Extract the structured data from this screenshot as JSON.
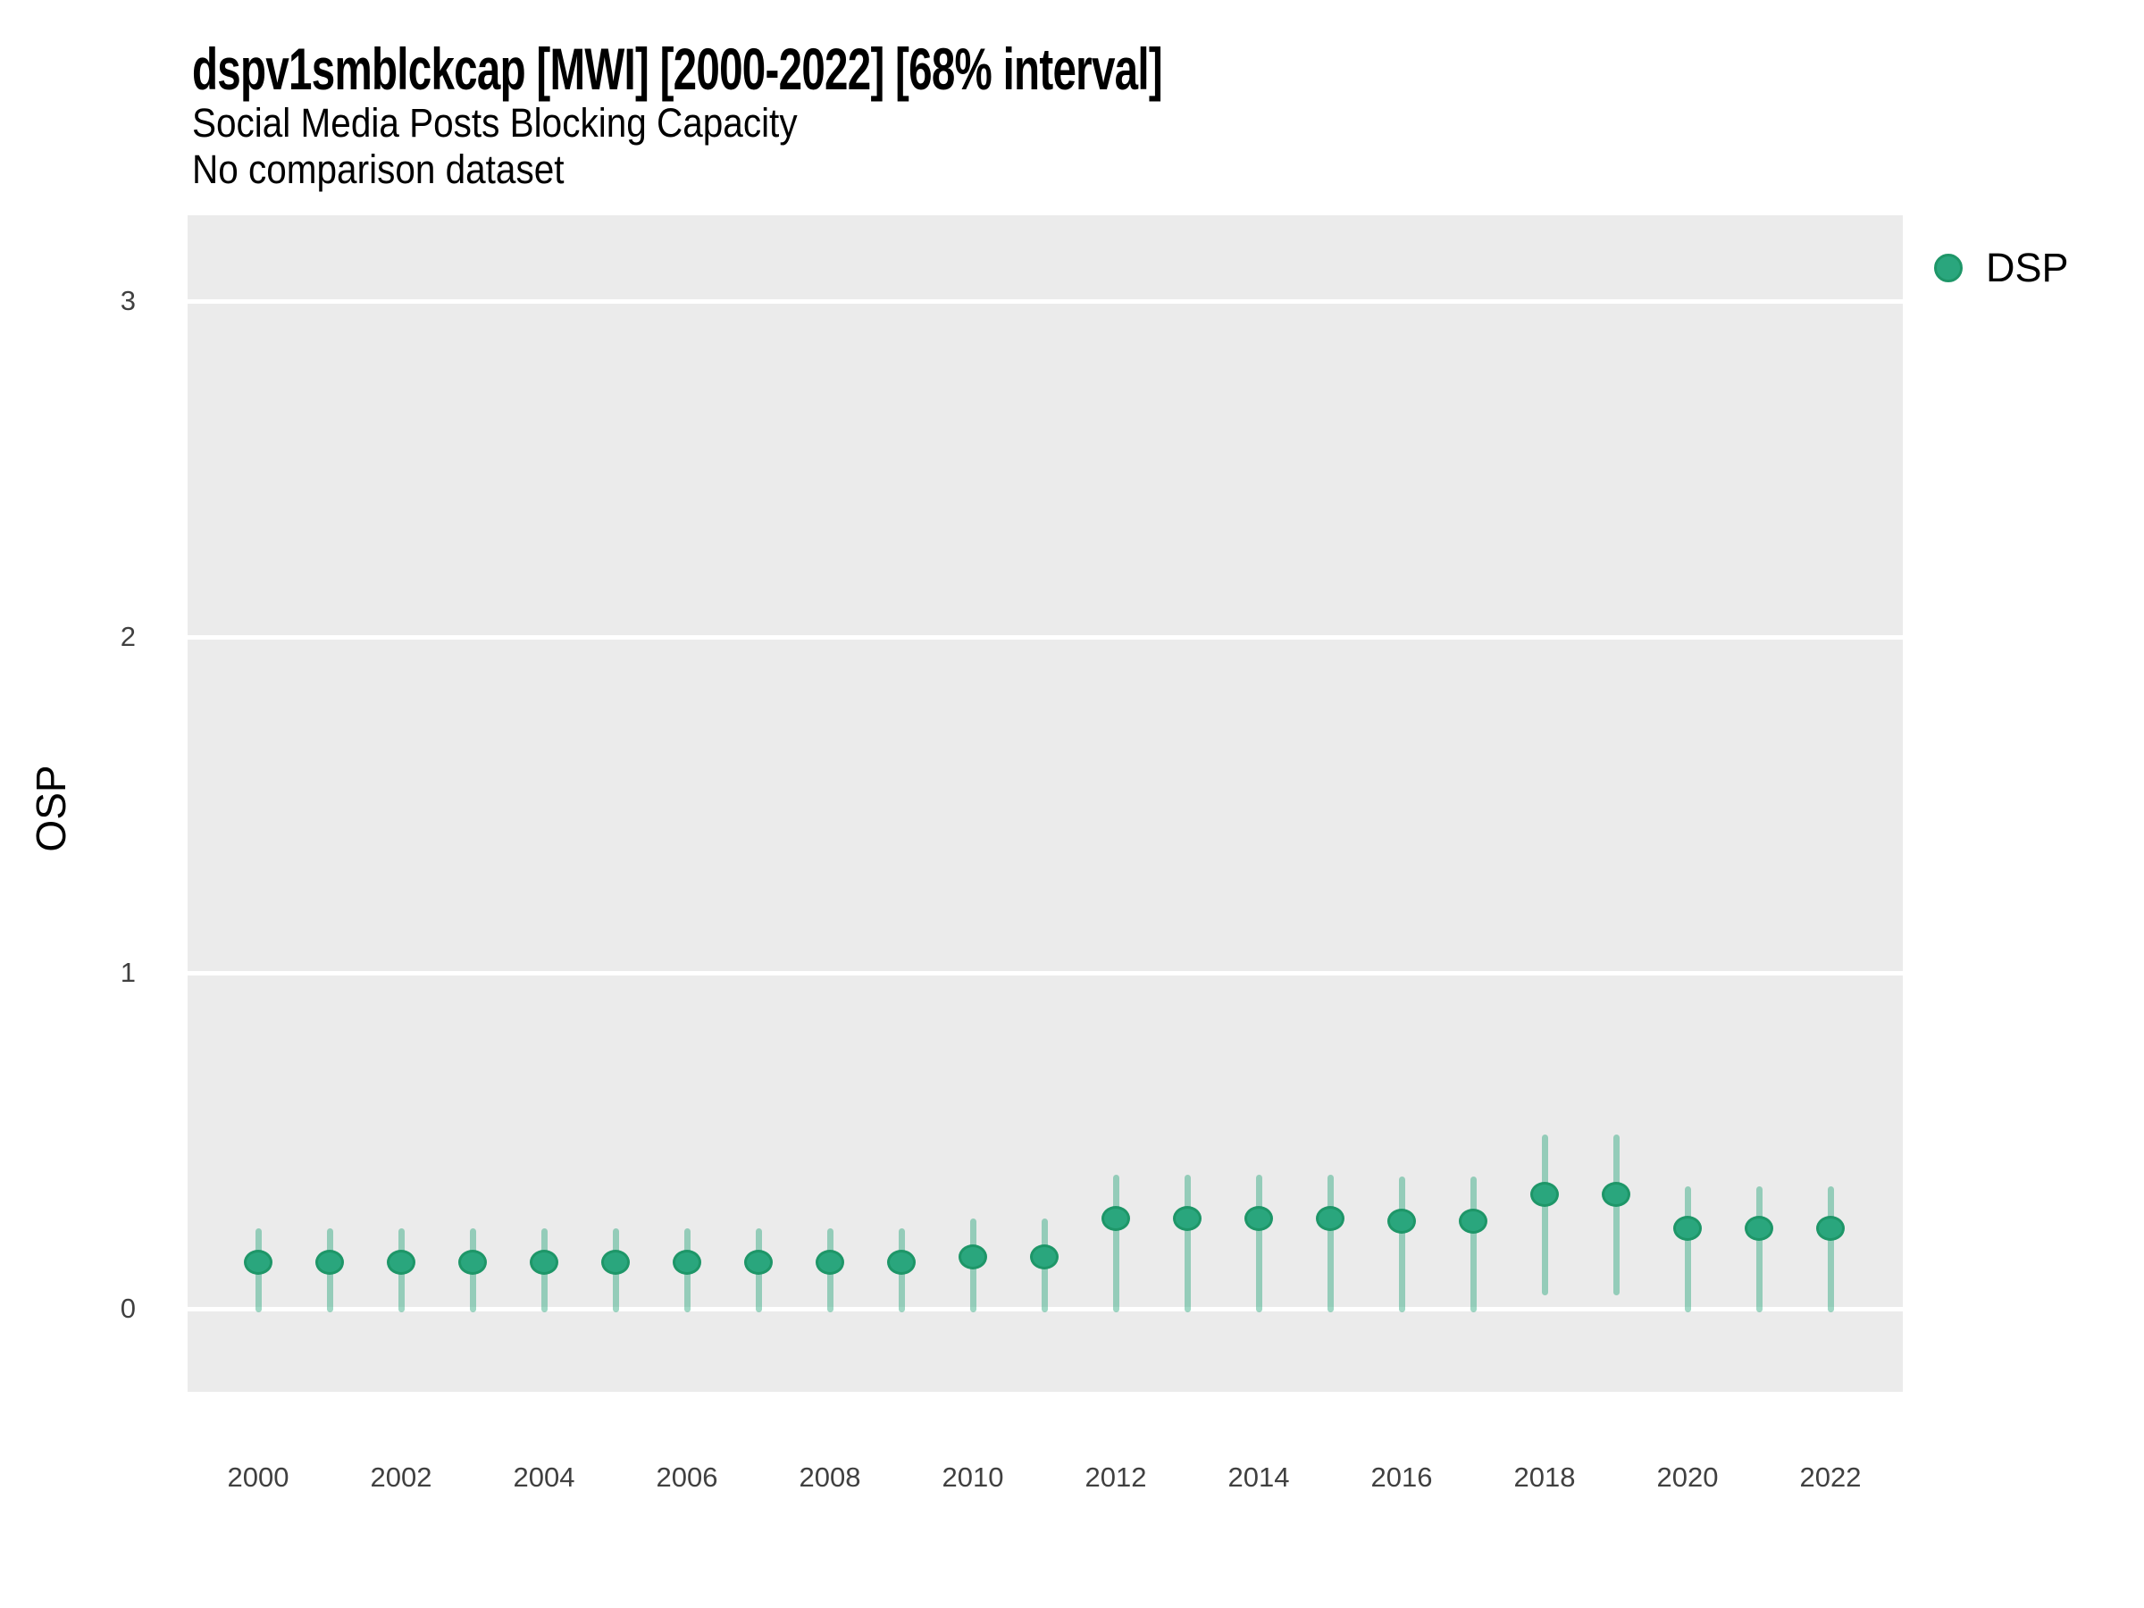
{
  "chart_data": {
    "type": "scatter",
    "title": "dspv1smblckcap [MWI] [2000-2022] [68% interval]",
    "subtitle": "Social Media Posts Blocking Capacity",
    "note": "No comparison dataset",
    "ylabel": "OSP",
    "xlabel": "",
    "interval_level": "68%",
    "legend": {
      "label": "DSP",
      "position": "right"
    },
    "y_ticks": [
      0,
      1,
      2,
      3
    ],
    "ylim": [
      -0.247,
      3.256
    ],
    "x_ticks": [
      "2000",
      "2002",
      "2004",
      "2006",
      "2008",
      "2010",
      "2012",
      "2014",
      "2016",
      "2018",
      "2020",
      "2022"
    ],
    "grid": "major-horizontal-white-on-gray",
    "series": [
      {
        "name": "DSP",
        "points": [
          {
            "year": 2000,
            "value": 0.14,
            "lo": 0,
            "hi": 0.23
          },
          {
            "year": 2001,
            "value": 0.14,
            "lo": 0,
            "hi": 0.23
          },
          {
            "year": 2002,
            "value": 0.14,
            "lo": 0,
            "hi": 0.23
          },
          {
            "year": 2003,
            "value": 0.14,
            "lo": 0,
            "hi": 0.23
          },
          {
            "year": 2004,
            "value": 0.14,
            "lo": 0,
            "hi": 0.23
          },
          {
            "year": 2005,
            "value": 0.14,
            "lo": 0,
            "hi": 0.23
          },
          {
            "year": 2006,
            "value": 0.14,
            "lo": 0,
            "hi": 0.23
          },
          {
            "year": 2007,
            "value": 0.14,
            "lo": 0,
            "hi": 0.23
          },
          {
            "year": 2008,
            "value": 0.14,
            "lo": 0,
            "hi": 0.23
          },
          {
            "year": 2009,
            "value": 0.14,
            "lo": 0,
            "hi": 0.23
          },
          {
            "year": 2010,
            "value": 0.155,
            "lo": 0,
            "hi": 0.26
          },
          {
            "year": 2011,
            "value": 0.155,
            "lo": 0,
            "hi": 0.26
          },
          {
            "year": 2012,
            "value": 0.27,
            "lo": 0,
            "hi": 0.39
          },
          {
            "year": 2013,
            "value": 0.27,
            "lo": 0,
            "hi": 0.39
          },
          {
            "year": 2014,
            "value": 0.27,
            "lo": 0,
            "hi": 0.39
          },
          {
            "year": 2015,
            "value": 0.27,
            "lo": 0,
            "hi": 0.39
          },
          {
            "year": 2016,
            "value": 0.26,
            "lo": 0,
            "hi": 0.385
          },
          {
            "year": 2017,
            "value": 0.26,
            "lo": 0,
            "hi": 0.385
          },
          {
            "year": 2018,
            "value": 0.34,
            "lo": 0.05,
            "hi": 0.51
          },
          {
            "year": 2019,
            "value": 0.34,
            "lo": 0.05,
            "hi": 0.51
          },
          {
            "year": 2020,
            "value": 0.24,
            "lo": 0,
            "hi": 0.355
          },
          {
            "year": 2021,
            "value": 0.24,
            "lo": 0,
            "hi": 0.355
          },
          {
            "year": 2022,
            "value": 0.24,
            "lo": 0,
            "hi": 0.355
          }
        ]
      }
    ],
    "colors": {
      "point": "#2aa67d",
      "point_border": "#1e9668",
      "interval": "rgba(42,166,125,0.45)",
      "panel_background": "#ebebeb",
      "gridline": "#ffffff",
      "tick_text": "#404040",
      "title_text": "#000000"
    }
  }
}
